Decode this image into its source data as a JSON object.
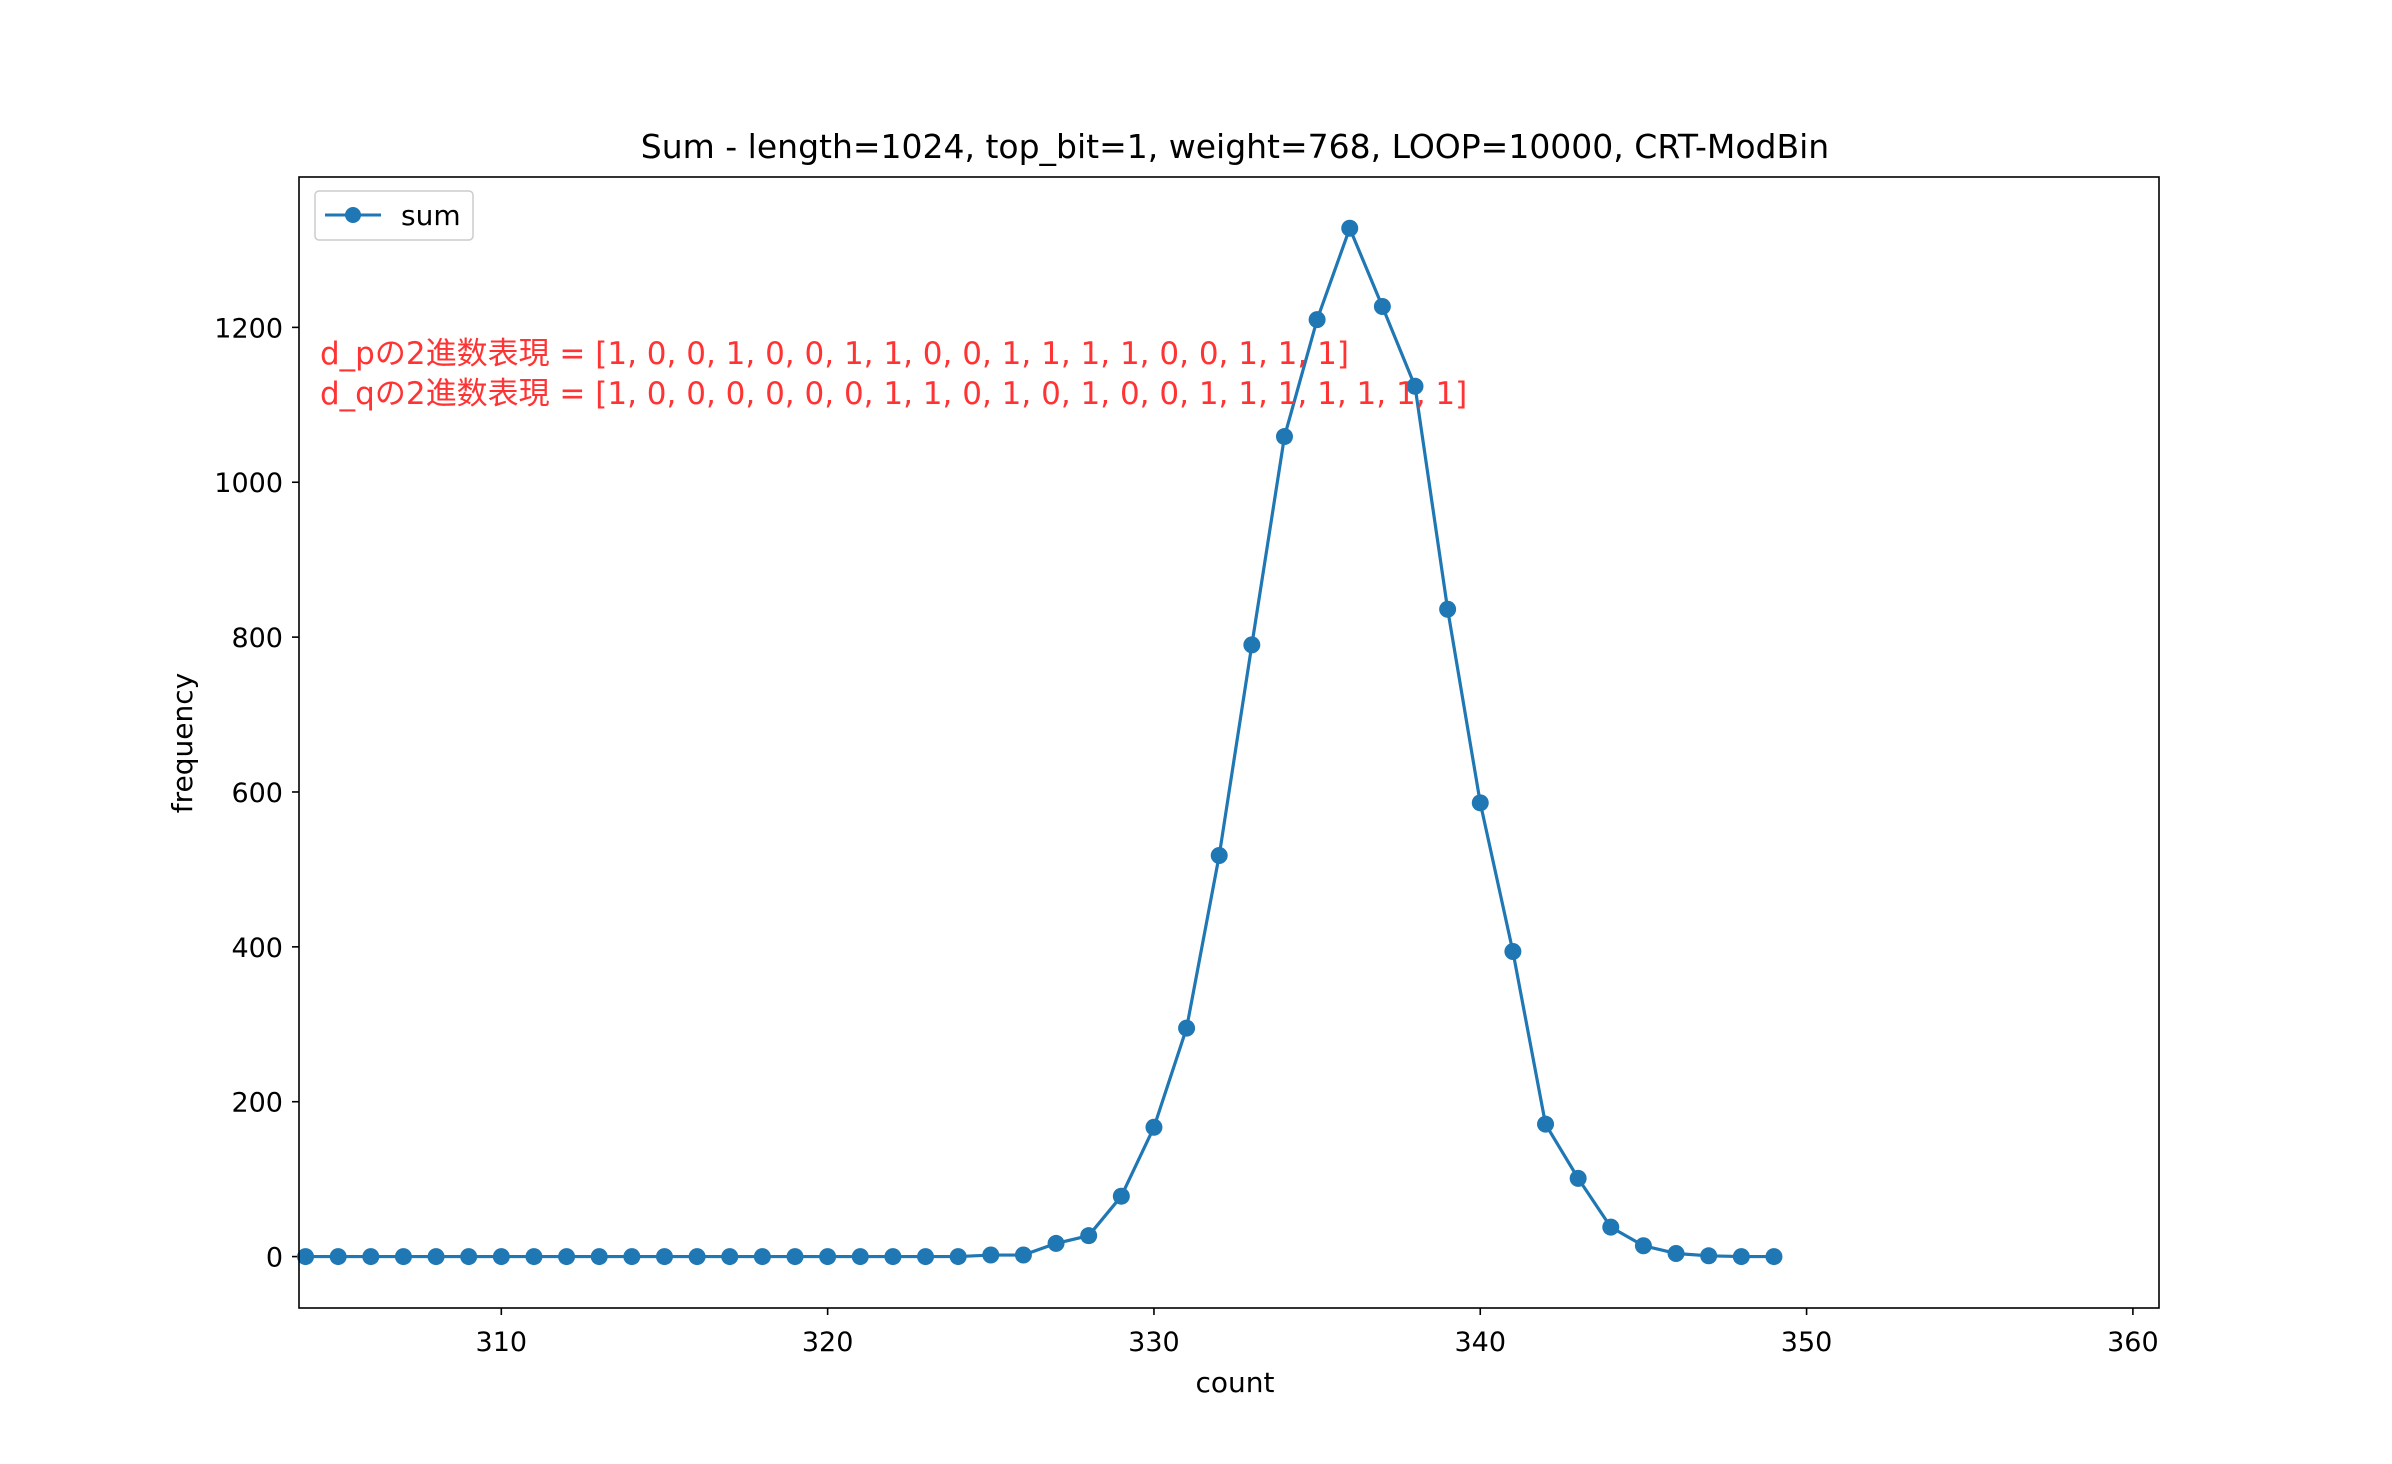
{
  "colors": {
    "series": "#1f77b4",
    "annotation": "#ff3333",
    "axis": "#000000",
    "background": "#ffffff"
  },
  "chart_data": {
    "type": "line",
    "title": "Sum - length=1024, top_bit=1, weight=768, LOOP=10000, CRT-ModBin",
    "xlabel": "count",
    "ylabel": "frequency",
    "xlim": [
      303.8,
      360.8
    ],
    "ylim": [
      -66.4,
      1394.2
    ],
    "xticks": [
      310,
      320,
      330,
      340,
      350,
      360
    ],
    "yticks": [
      0,
      200,
      400,
      600,
      800,
      1000,
      1200
    ],
    "grid": false,
    "legend": {
      "position": "top-left",
      "entries": [
        "sum"
      ]
    },
    "series": [
      {
        "name": "sum",
        "marker": "circle",
        "x": [
          304,
          305,
          306,
          307,
          308,
          309,
          310,
          311,
          312,
          313,
          314,
          315,
          316,
          317,
          318,
          319,
          320,
          321,
          322,
          323,
          324,
          325,
          326,
          327,
          328,
          329,
          330,
          331,
          332,
          333,
          334,
          335,
          336,
          337,
          338,
          339,
          340,
          341,
          342,
          343,
          344,
          345,
          346,
          347,
          348,
          349
        ],
        "y": [
          0,
          0,
          0,
          0,
          0,
          0,
          0,
          0,
          0,
          0,
          0,
          0,
          0,
          0,
          0,
          0,
          0,
          0,
          0,
          0,
          0,
          2,
          2,
          17,
          27,
          78,
          167,
          295,
          518,
          790,
          1059,
          1210,
          1328,
          1227,
          1124,
          836,
          586,
          394,
          171,
          101,
          38,
          14,
          4,
          1,
          0,
          0
        ]
      }
    ],
    "annotations": [
      "d_pの2進数表現 = [1, 0, 0, 1, 0, 0, 1, 1, 0, 0, 1, 1, 1, 1, 0, 0, 1, 1, 1]",
      "d_qの2進数表現 = [1, 0, 0, 0, 0, 0, 0, 1, 1, 0, 1, 0, 1, 0, 0, 1, 1, 1, 1, 1, 1, 1]"
    ]
  }
}
